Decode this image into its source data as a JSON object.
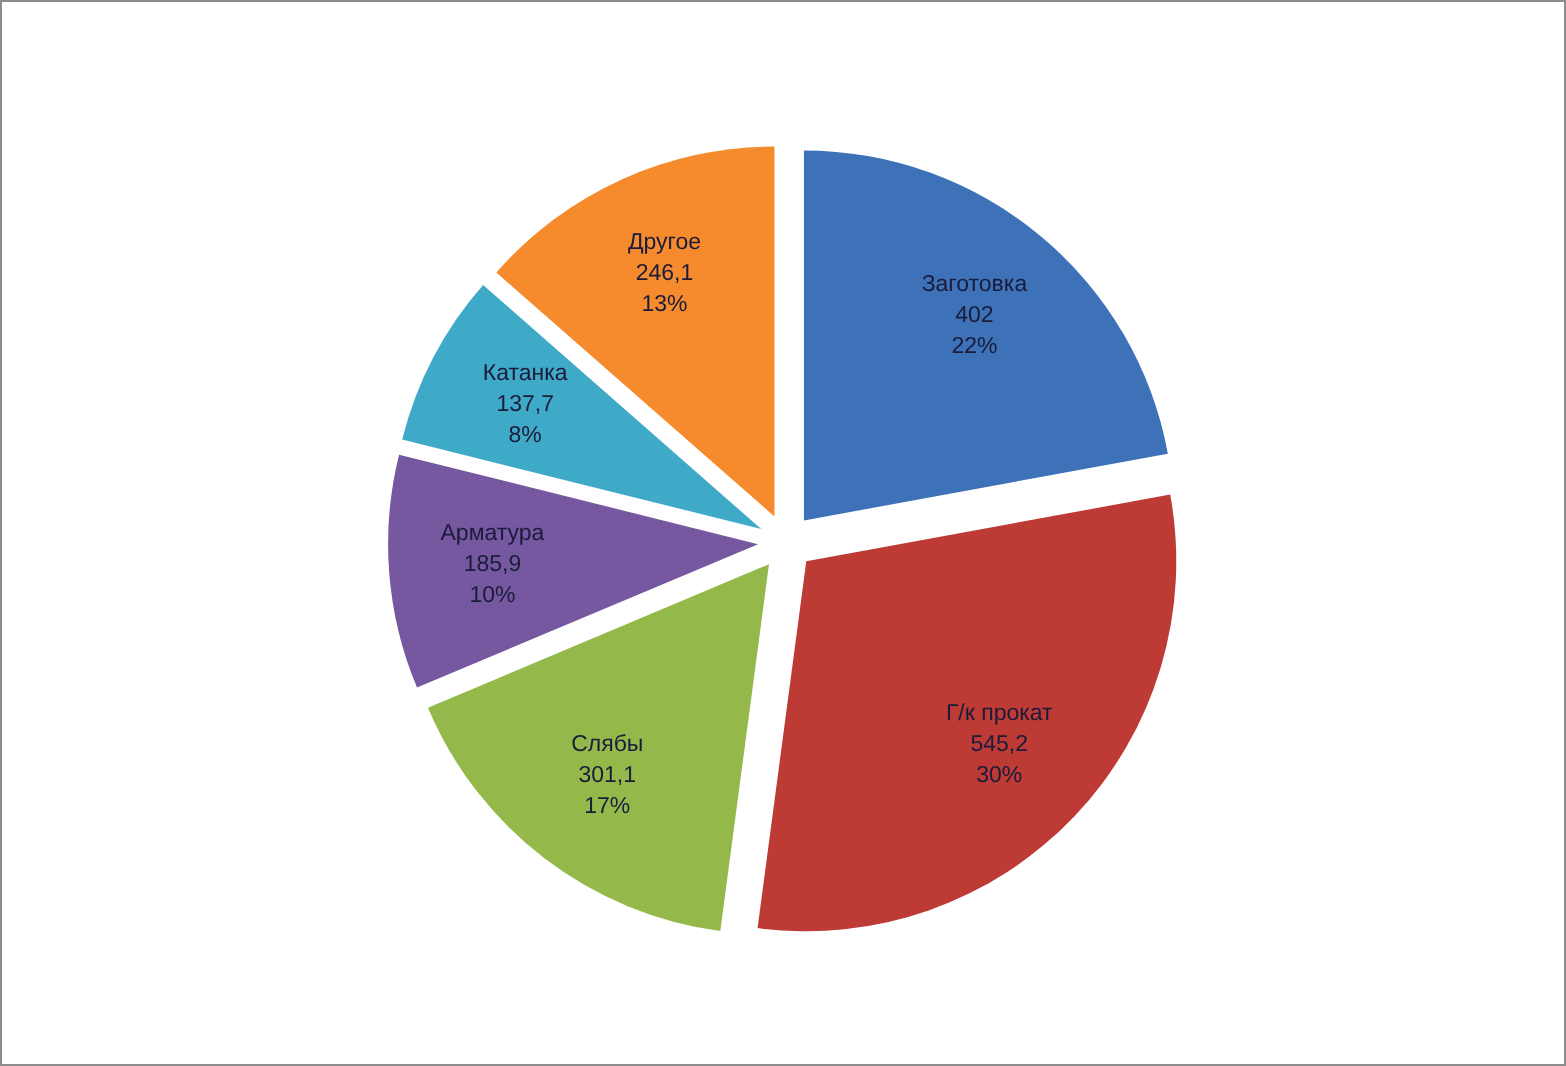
{
  "chart_data": {
    "type": "pie",
    "categories": [
      "Заготовка",
      "Г/к прокат",
      "Слябы",
      "Арматура",
      "Катанка",
      "Другое"
    ],
    "values": [
      402,
      545.2,
      301.1,
      185.9,
      137.7,
      246.1
    ],
    "colors": [
      "#3d72b8",
      "#be3a35",
      "#94b94a",
      "#7558a0",
      "#3fa9c8",
      "#f58b2c"
    ],
    "value_labels": [
      "402\n22%",
      "545,2\n30%",
      "301,1\n17%",
      "185,9\n10%",
      "137,7\n8%",
      "246,1\n13%"
    ]
  }
}
